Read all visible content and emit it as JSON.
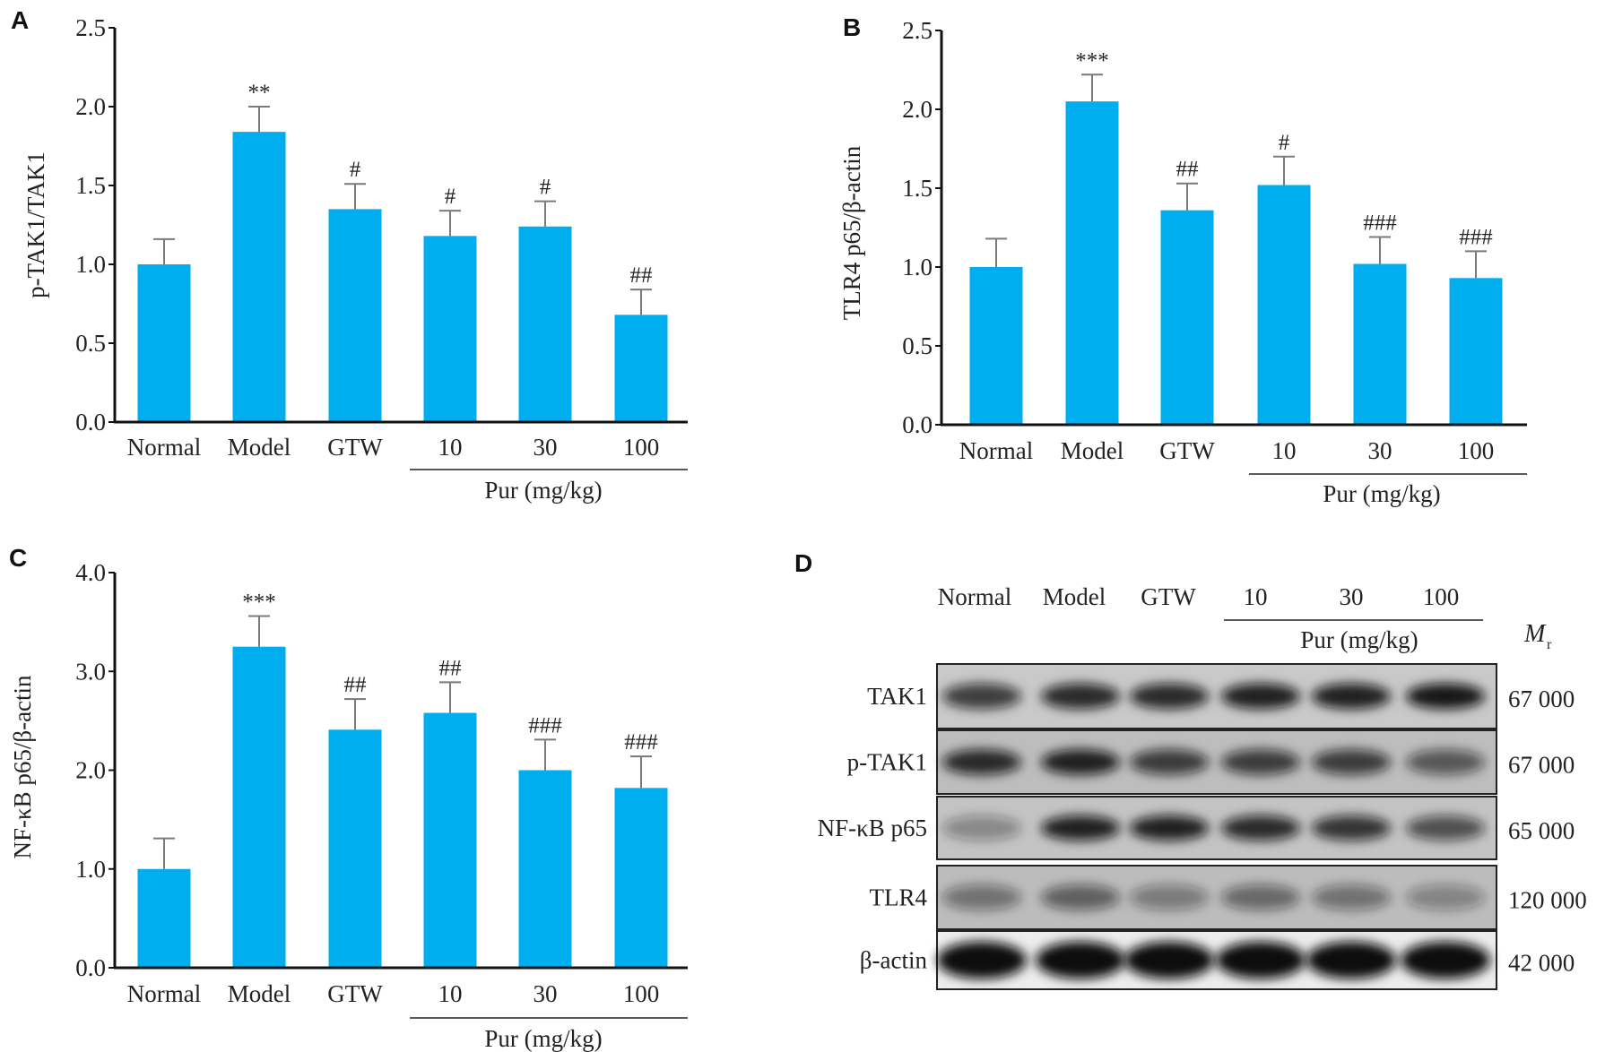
{
  "chart_data": [
    {
      "type": "bar",
      "panel": "A",
      "title": "",
      "ylabel": "p-TAK1/TAK1",
      "xlabel": "Pur (mg/kg)",
      "categories": [
        "Normal",
        "Model",
        "GTW",
        "10",
        "30",
        "100"
      ],
      "values": [
        1.0,
        1.84,
        1.35,
        1.18,
        1.24,
        0.68
      ],
      "errors": [
        0.16,
        0.16,
        0.16,
        0.16,
        0.16,
        0.16
      ],
      "annotations": [
        "",
        "**",
        "#",
        "#",
        "#",
        "##"
      ],
      "ylim": [
        0,
        2.5
      ],
      "yticks": [
        "0.0",
        "0.5",
        "1.0",
        "1.5",
        "2.0",
        "2.5"
      ],
      "grid": false
    },
    {
      "type": "bar",
      "panel": "B",
      "title": "",
      "ylabel": "TLR4 p65/β-actin",
      "xlabel": "Pur (mg/kg)",
      "categories": [
        "Normal",
        "Model",
        "GTW",
        "10",
        "30",
        "100"
      ],
      "values": [
        1.0,
        2.05,
        1.36,
        1.52,
        1.02,
        0.93
      ],
      "errors": [
        0.18,
        0.17,
        0.17,
        0.18,
        0.17,
        0.17
      ],
      "annotations": [
        "",
        "***",
        "##",
        "#",
        "###",
        "###"
      ],
      "ylim": [
        0,
        2.5
      ],
      "yticks": [
        "0.0",
        "0.5",
        "1.0",
        "1.5",
        "2.0",
        "2.5"
      ],
      "grid": false
    },
    {
      "type": "bar",
      "panel": "C",
      "title": "",
      "ylabel": "NF-κB p65/β-actin",
      "xlabel": "Pur (mg/kg)",
      "categories": [
        "Normal",
        "Model",
        "GTW",
        "10",
        "30",
        "100"
      ],
      "values": [
        1.0,
        3.25,
        2.41,
        2.58,
        2.0,
        1.82
      ],
      "errors": [
        0.31,
        0.31,
        0.31,
        0.31,
        0.31,
        0.32
      ],
      "annotations": [
        "",
        "***",
        "##",
        "##",
        "###",
        "###"
      ],
      "ylim": [
        0,
        4.0
      ],
      "yticks": [
        "0.0",
        "1.0",
        "2.0",
        "3.0",
        "4.0"
      ],
      "grid": false
    }
  ],
  "blot": {
    "panel": "D",
    "lanes": [
      "Normal",
      "Model",
      "GTW",
      "10",
      "30",
      "100"
    ],
    "group_label": "Pur (mg/kg)",
    "mr_label": "M",
    "mr_sub": "r",
    "rows": [
      {
        "protein": "TAK1",
        "mr": "67 000"
      },
      {
        "protein": "p-TAK1",
        "mr": "67 000"
      },
      {
        "protein": "NF-κB p65",
        "mr": "65 000"
      },
      {
        "protein": "TLR4",
        "mr": "120 000"
      },
      {
        "protein": "β-actin",
        "mr": "42 000"
      }
    ]
  },
  "colors": {
    "bar": "#00AEEF",
    "error": "#7a7a7a",
    "axis": "#111111"
  }
}
